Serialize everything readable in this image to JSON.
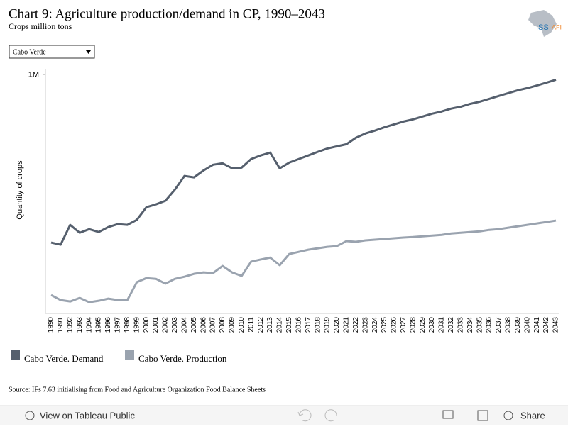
{
  "header": {
    "title": "Chart 9: Agriculture production/demand in CP, 1990–2043",
    "subtitle": "Crops million tons",
    "logo": "ISS",
    "logo_suffix": "AFI"
  },
  "filter": {
    "selected": "Cabo Verde"
  },
  "chart_data": {
    "type": "line",
    "y_label": "Quantity of crops",
    "categories": [
      "1990",
      "1991",
      "1992",
      "1993",
      "1994",
      "1995",
      "1996",
      "1997",
      "1998",
      "1999",
      "2000",
      "2001",
      "2002",
      "2003",
      "2004",
      "2005",
      "2006",
      "2007",
      "2008",
      "2009",
      "2010",
      "2011",
      "2012",
      "2013",
      "2014",
      "2015",
      "2016",
      "2017",
      "2018",
      "2019",
      "2020",
      "2021",
      "2022",
      "2023",
      "2024",
      "2025",
      "2026",
      "2027",
      "2028",
      "2029",
      "2030",
      "2031",
      "2032",
      "2033",
      "2034",
      "2035",
      "2036",
      "2037",
      "2038",
      "2039",
      "2040",
      "2041",
      "2042",
      "2043"
    ],
    "series": [
      {
        "name": "Cabo Verde. Demand",
        "color": "#555f6d",
        "values": [
          297000,
          288000,
          371000,
          338000,
          353000,
          341000,
          362000,
          374000,
          371000,
          392000,
          445000,
          457000,
          472000,
          519000,
          576000,
          570000,
          599000,
          623000,
          629000,
          608000,
          611000,
          647000,
          662000,
          674000,
          608000,
          632000,
          647000,
          662000,
          677000,
          691000,
          700000,
          709000,
          736000,
          754000,
          766000,
          780000,
          792000,
          804000,
          813000,
          825000,
          837000,
          846000,
          858000,
          866000,
          878000,
          887000,
          899000,
          911000,
          923000,
          935000,
          944000,
          955000,
          967000,
          979000
        ]
      },
      {
        "name": "Cabo Verde. Production",
        "color": "#9aa3af",
        "values": [
          77000,
          56000,
          50000,
          65000,
          47000,
          53000,
          62000,
          56000,
          56000,
          131000,
          148000,
          145000,
          125000,
          145000,
          154000,
          166000,
          172000,
          169000,
          199000,
          172000,
          157000,
          217000,
          226000,
          234000,
          202000,
          249000,
          258000,
          267000,
          273000,
          279000,
          282000,
          303000,
          300000,
          306000,
          309000,
          312000,
          315000,
          318000,
          320000,
          323000,
          326000,
          329000,
          335000,
          338000,
          341000,
          344000,
          350000,
          353000,
          359000,
          365000,
          371000,
          377000,
          383000,
          389000
        ]
      }
    ],
    "ylim": [
      0,
      1025000
    ],
    "yticks": [
      {
        "value": 1000000,
        "label": "1M"
      }
    ],
    "grid": false
  },
  "source": "Source: IFs 7.63 initialising from Food and Agriculture Organization Food Balance Sheets",
  "toolbar": {
    "view": "View on Tableau Public",
    "share": "Share"
  }
}
